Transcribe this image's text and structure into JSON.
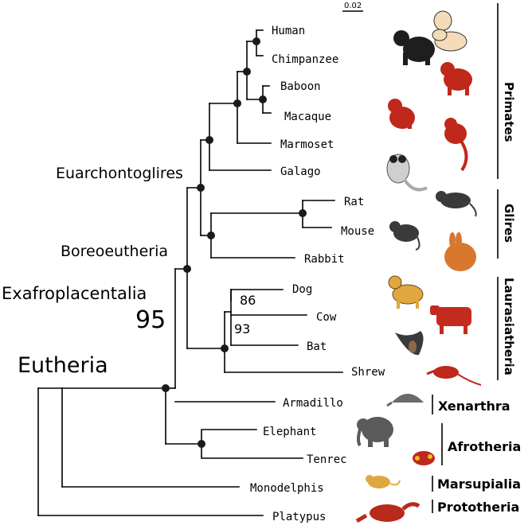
{
  "scale_label": "0.02",
  "taxa": {
    "human": "Human",
    "chimpanzee": "Chimpanzee",
    "baboon": "Baboon",
    "macaque": "Macaque",
    "marmoset": "Marmoset",
    "galago": "Galago",
    "rat": "Rat",
    "mouse": "Mouse",
    "rabbit": "Rabbit",
    "dog": "Dog",
    "cow": "Cow",
    "bat": "Bat",
    "shrew": "Shrew",
    "armadillo": "Armadillo",
    "elephant": "Elephant",
    "tenrec": "Tenrec",
    "monodelphis": "Monodelphis",
    "platypus": "Platypus"
  },
  "clades": {
    "euarchontoglires": "Euarchontoglires",
    "boreoeutheria": "Boreoeutheria",
    "exafroplacentalia": "Exafroplacentalia",
    "eutheria": "Eutheria"
  },
  "bootstrap": {
    "exafroplacentalia": "95",
    "dog_cow": "86",
    "laurasiatheria_inner": "93"
  },
  "groups": {
    "primates": "Primates",
    "glires": "Glires",
    "laurasiatheria": "Laurasiatheria",
    "xenarthra": "Xenarthra",
    "afrotheria": "Afrotheria",
    "marsupialia": "Marsupialia",
    "prototheria": "Prototheria"
  },
  "colors": {
    "node": "#1a1a1a",
    "primate_red": "#c0281c",
    "chimp_black": "#1e1e1e",
    "rodent_grey": "#3a3a3a",
    "rabbit_orange": "#d8772e",
    "dog_tan": "#e0a640",
    "cow_red": "#c42a1e",
    "platypus_red": "#b82a1c",
    "elephant_grey": "#5a5a5a"
  }
}
